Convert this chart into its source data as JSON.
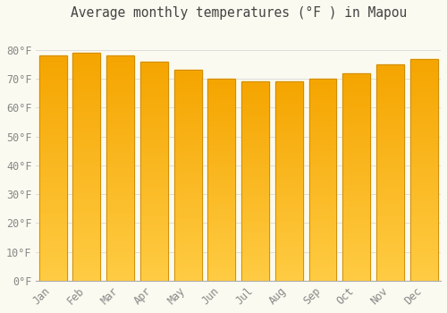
{
  "title": "Average monthly temperatures (°F ) in Mapou",
  "months": [
    "Jan",
    "Feb",
    "Mar",
    "Apr",
    "May",
    "Jun",
    "Jul",
    "Aug",
    "Sep",
    "Oct",
    "Nov",
    "Dec"
  ],
  "values": [
    78,
    79,
    78,
    76,
    73,
    70,
    69,
    69,
    70,
    72,
    75,
    77
  ],
  "bar_color_top": "#F5A800",
  "bar_color_bottom": "#FFCC55",
  "bar_edge_color": "#CC8800",
  "background_color": "#FAFAF0",
  "plot_bg_color": "#FAFAF0",
  "grid_color": "#DDDDDD",
  "ylim": [
    0,
    88
  ],
  "yticks": [
    0,
    10,
    20,
    30,
    40,
    50,
    60,
    70,
    80
  ],
  "ytick_labels": [
    "0°F",
    "10°F",
    "20°F",
    "30°F",
    "40°F",
    "50°F",
    "60°F",
    "70°F",
    "80°F"
  ],
  "title_fontsize": 10.5,
  "tick_fontsize": 8.5,
  "font_family": "monospace",
  "tick_color": "#888888",
  "title_color": "#444444"
}
